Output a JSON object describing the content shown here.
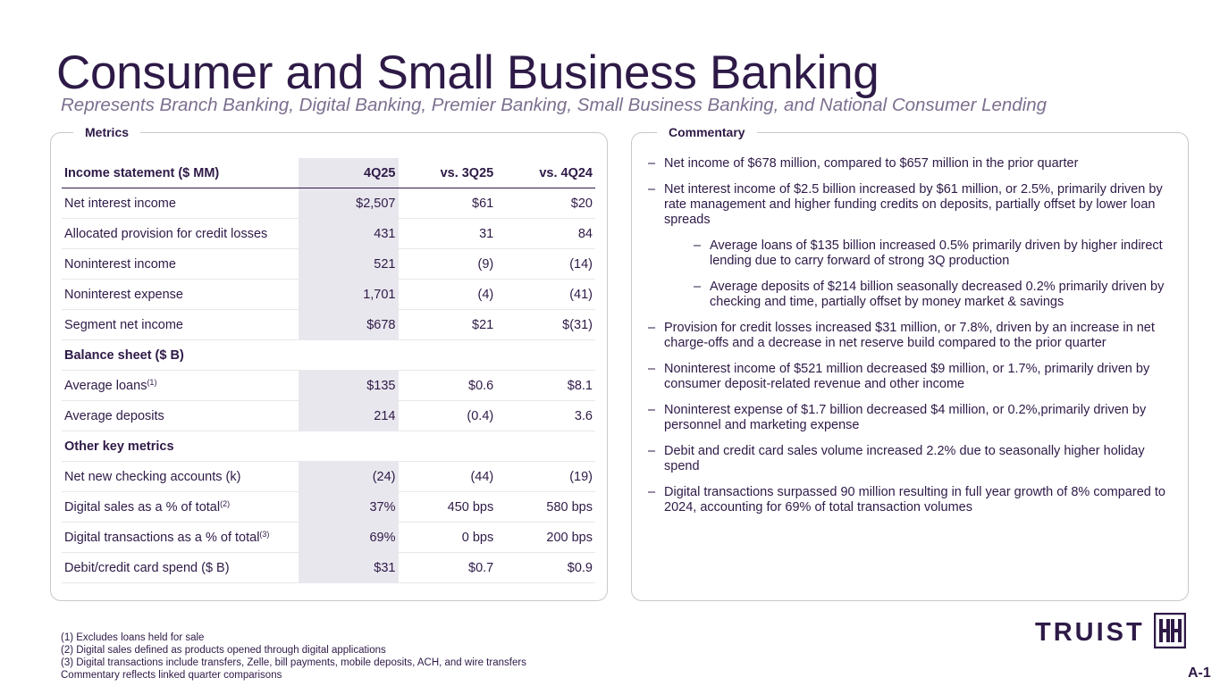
{
  "title": "Consumer and Small Business Banking",
  "subtitle": "Represents Branch Banking, Digital Banking, Premier Banking, Small Business Banking, and National Consumer Lending",
  "metrics": {
    "label": "Metrics",
    "header": {
      "label": "Income statement ($ MM)",
      "c1": "4Q25",
      "c2": "vs. 3Q25",
      "c3": "vs. 4Q24"
    },
    "rows": [
      {
        "label": "Net interest income",
        "c1": "$2,507",
        "c2": "$61",
        "c3": "$20"
      },
      {
        "label": "Allocated provision for credit losses",
        "c1": "431",
        "c2": "31",
        "c3": "84"
      },
      {
        "label": "Noninterest income",
        "c1": "521",
        "c2": "(9)",
        "c3": "(14)"
      },
      {
        "label": "Noninterest expense",
        "c1": "1,701",
        "c2": "(4)",
        "c3": "(41)"
      },
      {
        "label": "Segment net income",
        "c1": "$678",
        "c2": "$21",
        "c3": "$(31)"
      }
    ],
    "section_balance": "Balance sheet ($ B)",
    "balance_rows": [
      {
        "label": "Average loans",
        "sup": "(1)",
        "c1": "$135",
        "c2": "$0.6",
        "c3": "$8.1"
      },
      {
        "label": "Average deposits",
        "c1": "214",
        "c2": "(0.4)",
        "c3": "3.6"
      }
    ],
    "section_other": "Other key metrics",
    "other_rows": [
      {
        "label": "Net new checking accounts (k)",
        "c1": "(24)",
        "c2": "(44)",
        "c3": "(19)"
      },
      {
        "label": "Digital sales as a % of total",
        "sup": "(2)",
        "c1": "37%",
        "c2": "450 bps",
        "c3": "580 bps"
      },
      {
        "label": "Digital transactions as a % of total",
        "sup": "(3)",
        "c1": "69%",
        "c2": "0 bps",
        "c3": "200 bps"
      },
      {
        "label": "Debit/credit card spend ($ B)",
        "c1": "$31",
        "c2": "$0.7",
        "c3": "$0.9"
      }
    ]
  },
  "commentary": {
    "label": "Commentary",
    "dash": "–",
    "items": [
      "Net income of $678 million, compared to $657 million in the prior quarter",
      "Net interest income of $2.5 billion increased by $61 million, or 2.5%, primarily driven by rate management and higher funding credits on deposits, partially offset by lower loan spreads",
      "Average loans of $135 billion increased 0.5% primarily driven by higher indirect lending due to carry forward of strong 3Q production",
      "Average deposits of $214 billion seasonally decreased 0.2% primarily driven by checking and time, partially offset by money market & savings",
      "Provision for credit losses increased $31 million, or 7.8%, driven by an increase in net charge-offs and a decrease in net reserve build compared to the prior quarter",
      "Noninterest income of $521 million decreased $9 million, or 1.7%, primarily driven by consumer deposit-related revenue and other income",
      "Noninterest expense of $1.7 billion decreased $4 million, or 0.2%,primarily driven by personnel and marketing expense",
      "Debit and credit card sales volume increased 2.2% due to seasonally higher holiday spend",
      "Digital transactions surpassed 90 million resulting in full year growth of 8% compared to 2024, accounting for 69% of total transaction volumes"
    ]
  },
  "footnotes": [
    "(1)   Excludes loans held for sale",
    "(2)   Digital sales defined as products opened through digital applications",
    "(3)   Digital transactions include transfers, Zelle, bill payments, mobile deposits, ACH, and wire transfers",
    "Commentary reflects linked quarter comparisons"
  ],
  "logo": {
    "text": "TRUIST",
    "icon": "truist-hh-logo-icon"
  },
  "page_number": "A-1",
  "colors": {
    "primary": "#2e1a47",
    "subtitle": "#7c6f8f",
    "highlight_column": "#e9e7ee",
    "border": "#c8c8c8"
  }
}
